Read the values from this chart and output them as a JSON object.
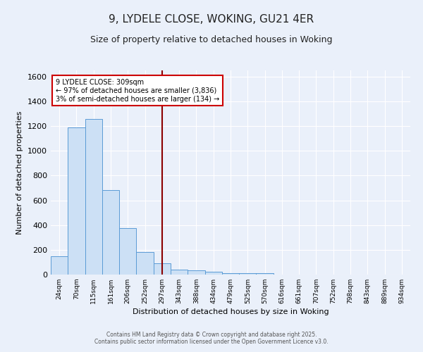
{
  "title": "9, LYDELE CLOSE, WOKING, GU21 4ER",
  "subtitle": "Size of property relative to detached houses in Woking",
  "xlabel": "Distribution of detached houses by size in Woking",
  "ylabel": "Number of detached properties",
  "categories": [
    "24sqm",
    "70sqm",
    "115sqm",
    "161sqm",
    "206sqm",
    "252sqm",
    "297sqm",
    "343sqm",
    "388sqm",
    "434sqm",
    "479sqm",
    "525sqm",
    "570sqm",
    "616sqm",
    "661sqm",
    "707sqm",
    "752sqm",
    "798sqm",
    "843sqm",
    "889sqm",
    "934sqm"
  ],
  "values": [
    150,
    1190,
    1260,
    685,
    375,
    180,
    90,
    37,
    32,
    20,
    13,
    12,
    13,
    0,
    0,
    0,
    0,
    0,
    0,
    0,
    0
  ],
  "bar_color_face": "#cce0f5",
  "bar_color_edge": "#5b9bd5",
  "vline_x": 6.5,
  "vline_color": "#8b0000",
  "annotation_title": "9 LYDELE CLOSE: 309sqm",
  "annotation_line1": "← 97% of detached houses are smaller (3,836)",
  "annotation_line2": "3% of semi-detached houses are larger (134) →",
  "annotation_box_color": "#ffffff",
  "annotation_box_edge": "#cc0000",
  "ylim": [
    0,
    1650
  ],
  "background_color": "#eaf0fa",
  "grid_color": "#ffffff",
  "footer1": "Contains HM Land Registry data © Crown copyright and database right 2025.",
  "footer2": "Contains public sector information licensed under the Open Government Licence v3.0."
}
